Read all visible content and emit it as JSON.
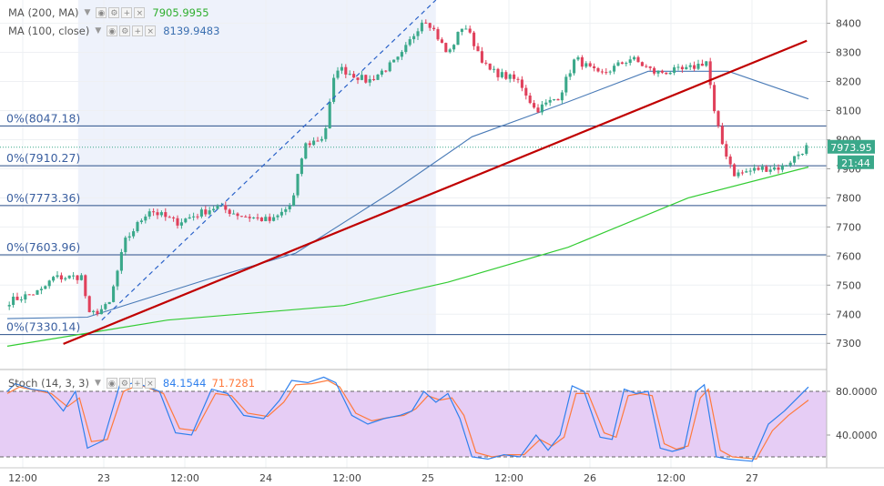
{
  "colors": {
    "candle_up": "#3aa88a",
    "candle_down": "#e0405b",
    "ma200": "#33cc33",
    "ma100": "#4a7bb7",
    "trendline": "#c00000",
    "fib": "#2a4f8a",
    "stoch_k": "#2f80ed",
    "stoch_d": "#ff7a3d",
    "stoch_band": "#e6cdf5",
    "highlight": "#eef2fb"
  },
  "legends": {
    "ma200": {
      "name": "MA (200, MA)",
      "value": "7905.9955"
    },
    "ma100": {
      "name": "MA (100, close)",
      "value": "8139.9483"
    },
    "stoch": {
      "name": "Stoch (14, 3, 3)",
      "k_value": "84.1544",
      "d_value": "71.7281"
    }
  },
  "icons": [
    "chevron-down-icon",
    "eye-icon",
    "gear-icon",
    "plus-icon",
    "close-icon"
  ],
  "price_tag": {
    "price": "7973.95",
    "countdown": "21:44"
  },
  "fib_levels": [
    {
      "label": "0%(8047.18)",
      "price": 8047.18
    },
    {
      "label": "0%(7910.27)",
      "price": 7910.27
    },
    {
      "label": "0%(7773.36)",
      "price": 7773.36
    },
    {
      "label": "0%(7603.96)",
      "price": 7603.96
    },
    {
      "label": "0%(7330.14)",
      "price": 7330.14
    }
  ],
  "chart_data": [
    {
      "type": "candlestick",
      "grid": true,
      "y_axis": {
        "range": [
          7210,
          8480
        ],
        "ticks": [
          7300,
          7400,
          7500,
          7600,
          7700,
          7800,
          7900,
          8000,
          8100,
          8200,
          8300,
          8400
        ]
      },
      "x_axis": {
        "ticks": [
          "12:00",
          "23",
          "12:00",
          "24",
          "12:00",
          "25",
          "12:00",
          "26",
          "12:00",
          "27"
        ]
      },
      "close_anchors": [
        {
          "t": 0,
          "close": 7445
        },
        {
          "t": 0.04,
          "close": 7480
        },
        {
          "t": 0.055,
          "close": 7525
        },
        {
          "t": 0.095,
          "close": 7530
        },
        {
          "t": 0.096,
          "close": 7390
        },
        {
          "t": 0.125,
          "close": 7430
        },
        {
          "t": 0.145,
          "close": 7650
        },
        {
          "t": 0.175,
          "close": 7760
        },
        {
          "t": 0.21,
          "close": 7715
        },
        {
          "t": 0.26,
          "close": 7770
        },
        {
          "t": 0.29,
          "close": 7740
        },
        {
          "t": 0.33,
          "close": 7720
        },
        {
          "t": 0.355,
          "close": 7780
        },
        {
          "t": 0.37,
          "close": 7980
        },
        {
          "t": 0.395,
          "close": 8010
        },
        {
          "t": 0.41,
          "close": 8250
        },
        {
          "t": 0.45,
          "close": 8200
        },
        {
          "t": 0.49,
          "close": 8280
        },
        {
          "t": 0.52,
          "close": 8420
        },
        {
          "t": 0.53,
          "close": 8390
        },
        {
          "t": 0.55,
          "close": 8290
        },
        {
          "t": 0.57,
          "close": 8400
        },
        {
          "t": 0.6,
          "close": 8240
        },
        {
          "t": 0.64,
          "close": 8200
        },
        {
          "t": 0.66,
          "close": 8100
        },
        {
          "t": 0.69,
          "close": 8150
        },
        {
          "t": 0.71,
          "close": 8280
        },
        {
          "t": 0.74,
          "close": 8220
        },
        {
          "t": 0.78,
          "close": 8280
        },
        {
          "t": 0.81,
          "close": 8230
        },
        {
          "t": 0.85,
          "close": 8240
        },
        {
          "t": 0.875,
          "close": 8270
        },
        {
          "t": 0.885,
          "close": 8080
        },
        {
          "t": 0.895,
          "close": 7980
        },
        {
          "t": 0.91,
          "close": 7880
        },
        {
          "t": 0.94,
          "close": 7900
        },
        {
          "t": 0.97,
          "close": 7905
        },
        {
          "t": 1,
          "close": 7974
        }
      ],
      "series": [
        {
          "name": "MA (200, MA)",
          "points": [
            {
              "t": 0,
              "v": 7290
            },
            {
              "t": 0.2,
              "v": 7380
            },
            {
              "t": 0.42,
              "v": 7430
            },
            {
              "t": 0.55,
              "v": 7510
            },
            {
              "t": 0.7,
              "v": 7630
            },
            {
              "t": 0.85,
              "v": 7800
            },
            {
              "t": 1,
              "v": 7906
            }
          ]
        },
        {
          "name": "MA (100, close)",
          "points": [
            {
              "t": 0,
              "v": 7385
            },
            {
              "t": 0.1,
              "v": 7390
            },
            {
              "t": 0.25,
              "v": 7520
            },
            {
              "t": 0.36,
              "v": 7610
            },
            {
              "t": 0.48,
              "v": 7820
            },
            {
              "t": 0.58,
              "v": 8010
            },
            {
              "t": 0.7,
              "v": 8130
            },
            {
              "t": 0.8,
              "v": 8235
            },
            {
              "t": 0.9,
              "v": 8235
            },
            {
              "t": 1,
              "v": 8140
            }
          ]
        }
      ],
      "trendlines": [
        {
          "start": {
            "t": 0.07,
            "v": 7298
          },
          "end": {
            "t": 0.998,
            "v": 8340
          }
        }
      ],
      "projection_line": {
        "start": {
          "t": 0.118,
          "v": 7380
        },
        "end": {
          "t": 0.535,
          "v": 8480
        }
      }
    },
    {
      "type": "line",
      "y_axis": {
        "range": [
          10,
          100
        ],
        "ticks": [
          40,
          80
        ]
      },
      "bands": [
        20,
        80
      ],
      "series": [
        {
          "name": "Stoch %K",
          "points": [
            {
              "t": 0,
              "v": 80
            },
            {
              "t": 0.01,
              "v": 87
            },
            {
              "t": 0.03,
              "v": 82
            },
            {
              "t": 0.05,
              "v": 80
            },
            {
              "t": 0.07,
              "v": 62
            },
            {
              "t": 0.085,
              "v": 80
            },
            {
              "t": 0.1,
              "v": 28
            },
            {
              "t": 0.12,
              "v": 35
            },
            {
              "t": 0.14,
              "v": 85
            },
            {
              "t": 0.16,
              "v": 88
            },
            {
              "t": 0.19,
              "v": 80
            },
            {
              "t": 0.21,
              "v": 42
            },
            {
              "t": 0.23,
              "v": 40
            },
            {
              "t": 0.255,
              "v": 82
            },
            {
              "t": 0.275,
              "v": 78
            },
            {
              "t": 0.295,
              "v": 58
            },
            {
              "t": 0.32,
              "v": 55
            },
            {
              "t": 0.34,
              "v": 72
            },
            {
              "t": 0.355,
              "v": 90
            },
            {
              "t": 0.375,
              "v": 88
            },
            {
              "t": 0.395,
              "v": 93
            },
            {
              "t": 0.41,
              "v": 88
            },
            {
              "t": 0.43,
              "v": 58
            },
            {
              "t": 0.45,
              "v": 50
            },
            {
              "t": 0.47,
              "v": 55
            },
            {
              "t": 0.49,
              "v": 58
            },
            {
              "t": 0.505,
              "v": 62
            },
            {
              "t": 0.52,
              "v": 80
            },
            {
              "t": 0.535,
              "v": 70
            },
            {
              "t": 0.55,
              "v": 78
            },
            {
              "t": 0.565,
              "v": 55
            },
            {
              "t": 0.58,
              "v": 20
            },
            {
              "t": 0.6,
              "v": 18
            },
            {
              "t": 0.62,
              "v": 22
            },
            {
              "t": 0.64,
              "v": 20
            },
            {
              "t": 0.66,
              "v": 40
            },
            {
              "t": 0.675,
              "v": 26
            },
            {
              "t": 0.69,
              "v": 40
            },
            {
              "t": 0.705,
              "v": 85
            },
            {
              "t": 0.72,
              "v": 80
            },
            {
              "t": 0.74,
              "v": 38
            },
            {
              "t": 0.755,
              "v": 36
            },
            {
              "t": 0.77,
              "v": 82
            },
            {
              "t": 0.785,
              "v": 78
            },
            {
              "t": 0.8,
              "v": 80
            },
            {
              "t": 0.815,
              "v": 28
            },
            {
              "t": 0.83,
              "v": 25
            },
            {
              "t": 0.845,
              "v": 28
            },
            {
              "t": 0.86,
              "v": 80
            },
            {
              "t": 0.87,
              "v": 86
            },
            {
              "t": 0.885,
              "v": 20
            },
            {
              "t": 0.9,
              "v": 18
            },
            {
              "t": 0.93,
              "v": 16
            },
            {
              "t": 0.95,
              "v": 50
            },
            {
              "t": 0.97,
              "v": 62
            },
            {
              "t": 1,
              "v": 84
            }
          ]
        },
        {
          "name": "Stoch %D",
          "points": [
            {
              "t": 0,
              "v": 78
            },
            {
              "t": 0.015,
              "v": 84
            },
            {
              "t": 0.035,
              "v": 81
            },
            {
              "t": 0.055,
              "v": 78
            },
            {
              "t": 0.075,
              "v": 66
            },
            {
              "t": 0.09,
              "v": 74
            },
            {
              "t": 0.105,
              "v": 34
            },
            {
              "t": 0.125,
              "v": 36
            },
            {
              "t": 0.145,
              "v": 80
            },
            {
              "t": 0.165,
              "v": 86
            },
            {
              "t": 0.195,
              "v": 78
            },
            {
              "t": 0.215,
              "v": 46
            },
            {
              "t": 0.235,
              "v": 44
            },
            {
              "t": 0.26,
              "v": 78
            },
            {
              "t": 0.28,
              "v": 76
            },
            {
              "t": 0.3,
              "v": 60
            },
            {
              "t": 0.325,
              "v": 57
            },
            {
              "t": 0.345,
              "v": 70
            },
            {
              "t": 0.36,
              "v": 86
            },
            {
              "t": 0.38,
              "v": 87
            },
            {
              "t": 0.4,
              "v": 90
            },
            {
              "t": 0.415,
              "v": 84
            },
            {
              "t": 0.435,
              "v": 60
            },
            {
              "t": 0.455,
              "v": 53
            },
            {
              "t": 0.475,
              "v": 56
            },
            {
              "t": 0.495,
              "v": 58
            },
            {
              "t": 0.51,
              "v": 64
            },
            {
              "t": 0.525,
              "v": 76
            },
            {
              "t": 0.54,
              "v": 72
            },
            {
              "t": 0.555,
              "v": 74
            },
            {
              "t": 0.57,
              "v": 58
            },
            {
              "t": 0.585,
              "v": 24
            },
            {
              "t": 0.605,
              "v": 20
            },
            {
              "t": 0.625,
              "v": 22
            },
            {
              "t": 0.645,
              "v": 22
            },
            {
              "t": 0.665,
              "v": 36
            },
            {
              "t": 0.68,
              "v": 30
            },
            {
              "t": 0.695,
              "v": 38
            },
            {
              "t": 0.71,
              "v": 78
            },
            {
              "t": 0.725,
              "v": 78
            },
            {
              "t": 0.745,
              "v": 42
            },
            {
              "t": 0.76,
              "v": 38
            },
            {
              "t": 0.775,
              "v": 76
            },
            {
              "t": 0.79,
              "v": 78
            },
            {
              "t": 0.805,
              "v": 76
            },
            {
              "t": 0.82,
              "v": 32
            },
            {
              "t": 0.835,
              "v": 27
            },
            {
              "t": 0.85,
              "v": 30
            },
            {
              "t": 0.865,
              "v": 74
            },
            {
              "t": 0.875,
              "v": 82
            },
            {
              "t": 0.89,
              "v": 26
            },
            {
              "t": 0.905,
              "v": 20
            },
            {
              "t": 0.935,
              "v": 18
            },
            {
              "t": 0.955,
              "v": 44
            },
            {
              "t": 0.975,
              "v": 58
            },
            {
              "t": 1,
              "v": 72
            }
          ]
        }
      ]
    }
  ]
}
